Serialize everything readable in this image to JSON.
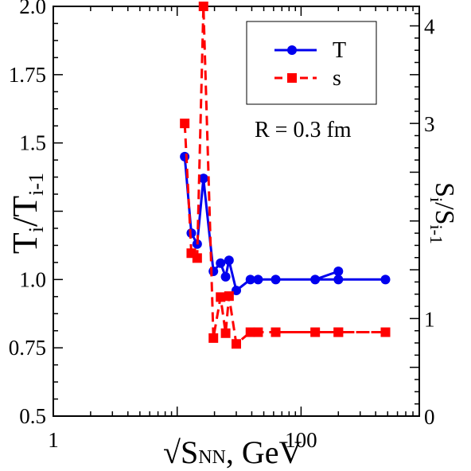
{
  "chart_data": {
    "type": "line",
    "title": "",
    "xlabel": {
      "prefix": "√S",
      "sub": "NN",
      "suffix": ", GeV"
    },
    "ylabel_left": {
      "main": "T",
      "sub1": "i",
      "mid": "/T",
      "sub2": "i-1"
    },
    "ylabel_right": {
      "main": "S",
      "sub1": "i",
      "mid": "/S",
      "sub2": "i-1"
    },
    "x_scale": "log",
    "xlim": [
      1,
      900
    ],
    "x_ticks": [
      1,
      100
    ],
    "x_tick_labels": [
      "1",
      "100"
    ],
    "ylim_left": [
      0.5,
      2.0
    ],
    "y_ticks_left": [
      0.5,
      0.75,
      1.0,
      1.5,
      1.75,
      2.0
    ],
    "y_tick_labels_left": [
      "0.5",
      "0.75",
      "1.0",
      "1.5",
      "1.75",
      "2.0"
    ],
    "ylim_right": [
      0,
      4.2
    ],
    "y_ticks_right": [
      0,
      1,
      3,
      4
    ],
    "y_tick_labels_right": [
      "0",
      "1",
      "3",
      "4"
    ],
    "annotation": "R = 0.3 fm",
    "legend_position": "top-right",
    "series": [
      {
        "name": "T",
        "axis": "left",
        "color": "#0000ee",
        "marker": "circle",
        "line": "solid",
        "x": [
          11.5,
          13.0,
          14.5,
          16.3,
          19.6,
          22.4,
          24.6,
          26.2,
          30.0,
          39.0,
          45.0,
          480.0,
          200.0,
          62.4,
          130.0,
          200.0
        ],
        "y": [
          1.45,
          1.17,
          1.13,
          1.37,
          1.03,
          1.06,
          1.01,
          1.07,
          0.96,
          1.0,
          1.0,
          1.0,
          1.0,
          1.0,
          1.0,
          1.03
        ]
      },
      {
        "name": "s",
        "axis": "right",
        "color": "#ff0000",
        "marker": "square",
        "line": "dashed",
        "x": [
          11.5,
          13.0,
          14.5,
          16.3,
          19.6,
          22.4,
          24.6,
          26.2,
          30.0,
          39.0,
          45.0,
          480.0,
          200.0,
          62.4,
          130.0,
          200.0
        ],
        "y": [
          3.0,
          1.67,
          1.62,
          4.2,
          0.8,
          1.22,
          0.85,
          1.23,
          0.74,
          0.86,
          0.86,
          0.86,
          0.86,
          0.86,
          0.86,
          0.86
        ]
      }
    ]
  }
}
